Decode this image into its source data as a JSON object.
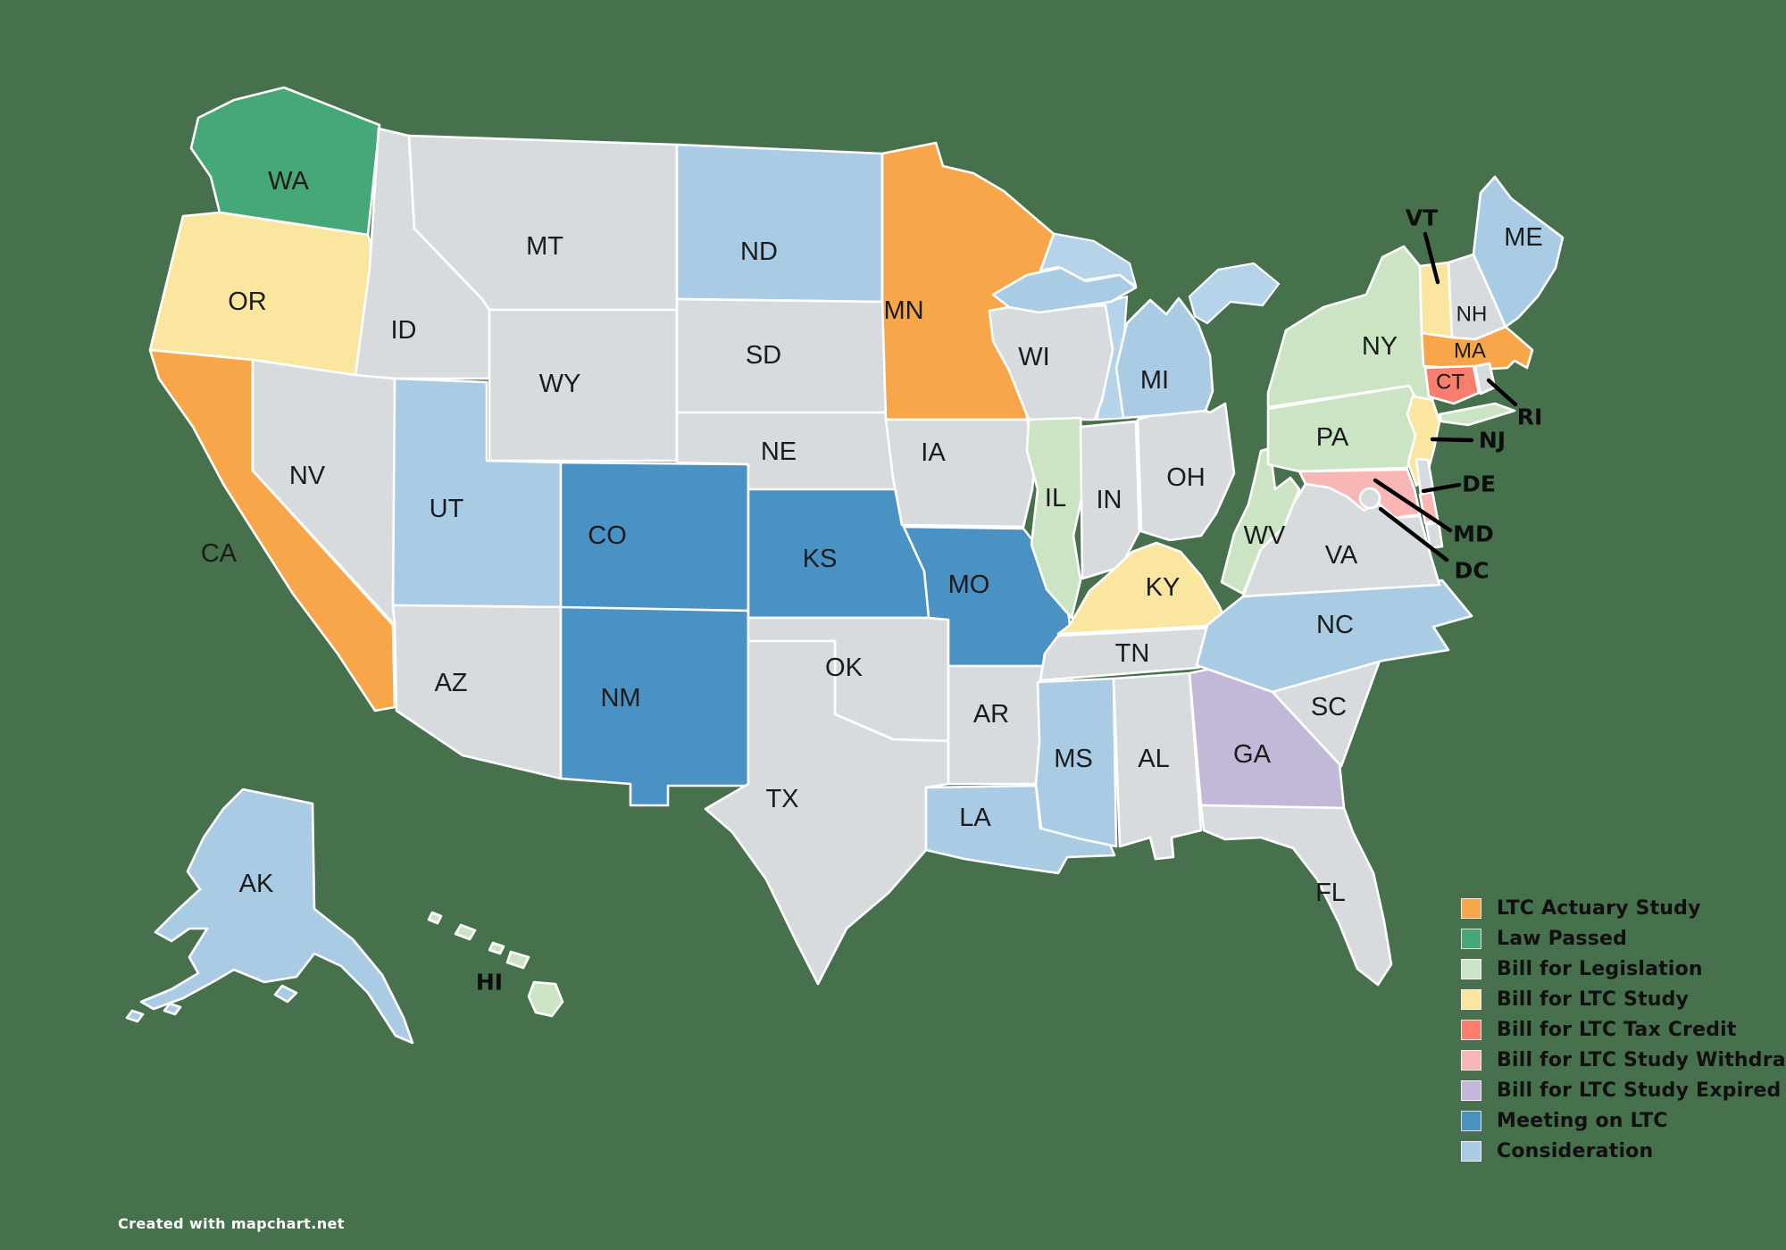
{
  "credit": "Created with mapchart.net",
  "map": {
    "background_color": "#47714D",
    "border_color": "#ffffff",
    "default_state_color": "#D7DBDD",
    "water_color": "#B5D4EA",
    "label_color": "#1b1b1b",
    "callout_line_color": "#000000"
  },
  "legend": {
    "position": "bottom-right",
    "items": [
      {
        "key": "ltc_actuary_study",
        "label": "LTC Actuary Study",
        "color": "#F7A64A"
      },
      {
        "key": "law_passed",
        "label": "Law Passed",
        "color": "#46A778"
      },
      {
        "key": "bill_for_legislation",
        "label": "Bill for Legislation",
        "color": "#CBE5C4"
      },
      {
        "key": "bill_for_ltc_study",
        "label": "Bill for LTC Study",
        "color": "#FAE69E"
      },
      {
        "key": "bill_for_ltc_tax_credit",
        "label": "Bill for LTC Tax Credit",
        "color": "#F97E6E"
      },
      {
        "key": "bill_for_ltc_study_withdrawn",
        "label": "Bill for LTC Study Withdrawn",
        "color": "#F8B6B4"
      },
      {
        "key": "bill_for_ltc_study_expired",
        "label": "Bill for LTC Study Expired",
        "color": "#C2B8D8"
      },
      {
        "key": "meeting_on_ltc",
        "label": "Meeting on LTC",
        "color": "#4A91C4"
      },
      {
        "key": "consideration",
        "label": "Consideration",
        "color": "#AACBE4"
      }
    ]
  },
  "states": [
    {
      "abbr": "WA",
      "category": "law_passed"
    },
    {
      "abbr": "OR",
      "category": "bill_for_ltc_study"
    },
    {
      "abbr": "CA",
      "category": "ltc_actuary_study"
    },
    {
      "abbr": "NV",
      "category": null
    },
    {
      "abbr": "ID",
      "category": null
    },
    {
      "abbr": "MT",
      "category": null
    },
    {
      "abbr": "WY",
      "category": null
    },
    {
      "abbr": "UT",
      "category": "consideration"
    },
    {
      "abbr": "CO",
      "category": "meeting_on_ltc"
    },
    {
      "abbr": "AZ",
      "category": null
    },
    {
      "abbr": "NM",
      "category": "meeting_on_ltc"
    },
    {
      "abbr": "ND",
      "category": "consideration"
    },
    {
      "abbr": "SD",
      "category": null
    },
    {
      "abbr": "NE",
      "category": null
    },
    {
      "abbr": "KS",
      "category": "meeting_on_ltc"
    },
    {
      "abbr": "OK",
      "category": null
    },
    {
      "abbr": "TX",
      "category": null
    },
    {
      "abbr": "MN",
      "category": "ltc_actuary_study"
    },
    {
      "abbr": "IA",
      "category": null
    },
    {
      "abbr": "MO",
      "category": "meeting_on_ltc"
    },
    {
      "abbr": "AR",
      "category": null
    },
    {
      "abbr": "LA",
      "category": "consideration"
    },
    {
      "abbr": "WI",
      "category": null
    },
    {
      "abbr": "IL",
      "category": "bill_for_legislation"
    },
    {
      "abbr": "IN",
      "category": null
    },
    {
      "abbr": "OH",
      "category": null
    },
    {
      "abbr": "MI",
      "category": "consideration"
    },
    {
      "abbr": "KY",
      "category": "bill_for_ltc_study"
    },
    {
      "abbr": "TN",
      "category": null
    },
    {
      "abbr": "MS",
      "category": "consideration"
    },
    {
      "abbr": "AL",
      "category": null
    },
    {
      "abbr": "GA",
      "category": "bill_for_ltc_study_expired"
    },
    {
      "abbr": "FL",
      "category": null
    },
    {
      "abbr": "SC",
      "category": null
    },
    {
      "abbr": "NC",
      "category": "consideration"
    },
    {
      "abbr": "VA",
      "category": null
    },
    {
      "abbr": "WV",
      "category": "bill_for_legislation"
    },
    {
      "abbr": "PA",
      "category": "bill_for_legislation"
    },
    {
      "abbr": "NY",
      "category": "bill_for_legislation"
    },
    {
      "abbr": "NJ",
      "category": "bill_for_ltc_study",
      "callout": true
    },
    {
      "abbr": "DE",
      "category": null,
      "callout": true
    },
    {
      "abbr": "MD",
      "category": "bill_for_ltc_study_withdrawn",
      "callout": true
    },
    {
      "abbr": "DC",
      "category": null,
      "callout": true
    },
    {
      "abbr": "VT",
      "category": "bill_for_ltc_study",
      "callout": true
    },
    {
      "abbr": "NH",
      "category": null
    },
    {
      "abbr": "MA",
      "category": "ltc_actuary_study"
    },
    {
      "abbr": "CT",
      "category": "bill_for_ltc_tax_credit"
    },
    {
      "abbr": "RI",
      "category": null,
      "callout": true
    },
    {
      "abbr": "ME",
      "category": "consideration"
    },
    {
      "abbr": "AK",
      "category": "consideration"
    },
    {
      "abbr": "HI",
      "category": "bill_for_legislation",
      "callout": true
    }
  ]
}
